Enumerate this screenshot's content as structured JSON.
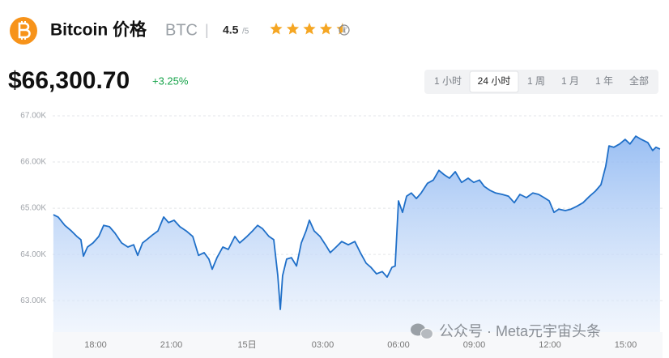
{
  "header": {
    "title": "Bitcoin 价格",
    "symbol": "BTC",
    "separator": "|",
    "rating": 4.5,
    "rating_scale": "/5",
    "price": "$66,300.70",
    "change": "+3.25%",
    "tabs": [
      "1 小时",
      "24 小时",
      "1 周",
      "1 月",
      "1 年",
      "全部"
    ],
    "selected_tab": 1
  },
  "watermark": "公众号 · Meta元宇宙头条",
  "chart_data": {
    "type": "area",
    "color": "#1f6fc8",
    "x": [
      -7.67,
      -7.48,
      -7.22,
      -6.96,
      -6.74,
      -6.58,
      -6.48,
      -6.32,
      -6.1,
      -5.87,
      -5.68,
      -5.45,
      -5.23,
      -4.97,
      -4.72,
      -4.49,
      -4.33,
      -4.14,
      -3.95,
      -3.75,
      -3.53,
      -3.3,
      -3.11,
      -2.89,
      -2.66,
      -2.41,
      -2.15,
      -1.92,
      -1.7,
      -1.51,
      -1.38,
      -1.19,
      -0.96,
      -0.74,
      -0.48,
      -0.29,
      0,
      0.22,
      0.42,
      0.61,
      0.87,
      1.06,
      1.22,
      1.32,
      1.41,
      1.57,
      1.76,
      1.96,
      2.15,
      2.34,
      2.47,
      2.66,
      2.89,
      3.11,
      3.3,
      3.53,
      3.75,
      4.01,
      4.27,
      4.49,
      4.72,
      4.91,
      5.13,
      5.36,
      5.55,
      5.74,
      5.87,
      6.0,
      6.16,
      6.32,
      6.51,
      6.71,
      6.9,
      7.15,
      7.38,
      7.6,
      7.8,
      8.02,
      8.25,
      8.5,
      8.76,
      8.98,
      9.21,
      9.4,
      9.62,
      9.85,
      10.11,
      10.36,
      10.59,
      10.81,
      11.07,
      11.32,
      11.55,
      11.77,
      11.97,
      12.16,
      12.35,
      12.61,
      12.83,
      13.06,
      13.31,
      13.57,
      13.8,
      14.02,
      14.21,
      14.34,
      14.53,
      14.76,
      14.98,
      15.17,
      15.4,
      15.62,
      15.88,
      16.07,
      16.2,
      16.36
    ],
    "values": [
      64860,
      64807,
      64630,
      64510,
      64390,
      64320,
      63965,
      64160,
      64250,
      64390,
      64630,
      64600,
      64460,
      64250,
      64160,
      64210,
      63980,
      64250,
      64330,
      64420,
      64510,
      64810,
      64690,
      64740,
      64600,
      64510,
      64390,
      63980,
      64040,
      63900,
      63680,
      63930,
      64160,
      64110,
      64390,
      64250,
      64390,
      64510,
      64630,
      64560,
      64390,
      64320,
      63540,
      62810,
      63540,
      63900,
      63930,
      63750,
      64250,
      64510,
      64740,
      64510,
      64390,
      64210,
      64040,
      64160,
      64280,
      64210,
      64280,
      64040,
      63810,
      63720,
      63580,
      63630,
      63510,
      63720,
      63750,
      65160,
      64910,
      65260,
      65330,
      65210,
      65330,
      65540,
      65610,
      65820,
      65730,
      65650,
      65790,
      65560,
      65650,
      65560,
      65610,
      65470,
      65390,
      65330,
      65300,
      65260,
      65120,
      65300,
      65230,
      65330,
      65300,
      65230,
      65160,
      64910,
      64980,
      64950,
      64980,
      65040,
      65120,
      65260,
      65370,
      65510,
      65910,
      66350,
      66320,
      66390,
      66490,
      66390,
      66560,
      66490,
      66420,
      66250,
      66320,
      66280
    ],
    "xlim": [
      -7.7,
      16.46
    ],
    "xticks": [
      {
        "value": -6,
        "label": "18:00"
      },
      {
        "value": -3,
        "label": "21:00"
      },
      {
        "value": 0,
        "label": "15日"
      },
      {
        "value": 3,
        "label": "03:00"
      },
      {
        "value": 6,
        "label": "06:00"
      },
      {
        "value": 9,
        "label": "09:00"
      },
      {
        "value": 12,
        "label": "12:00"
      },
      {
        "value": 15,
        "label": "15:00"
      }
    ],
    "ylim": [
      62320,
      67000
    ],
    "yticks": [
      {
        "value": 63000,
        "label": "63.00K"
      },
      {
        "value": 64000,
        "label": "64.00K"
      },
      {
        "value": 65000,
        "label": "65.00K"
      },
      {
        "value": 66000,
        "label": "66.00K"
      },
      {
        "value": 67000,
        "label": "67.00K"
      }
    ],
    "grid": true
  }
}
